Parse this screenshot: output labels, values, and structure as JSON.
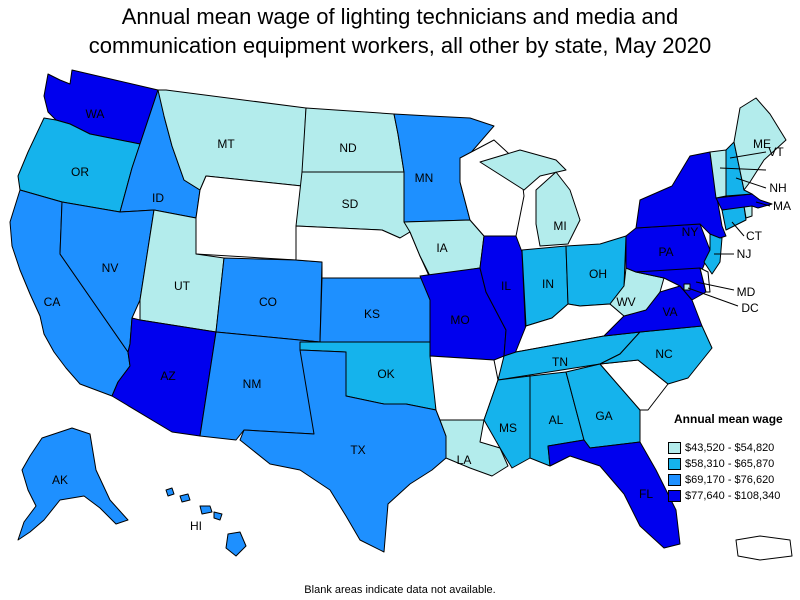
{
  "title": {
    "line1": "Annual mean wage of lighting technicians and media and",
    "line2": "communication equipment workers, all other by state, May 2020"
  },
  "colors": {
    "c1": "#b3ecec",
    "c2": "#15b3ec",
    "c3": "#1e90ff",
    "c4": "#0000ee",
    "na": "#ffffff"
  },
  "legend": {
    "title": "Annual mean wage",
    "items": [
      {
        "label": "$43,520 - $54,820",
        "color": "#b3ecec"
      },
      {
        "label": "$58,310 - $65,870",
        "color": "#15b3ec"
      },
      {
        "label": "$69,170 - $76,620",
        "color": "#1e90ff"
      },
      {
        "label": "$77,640 - $108,340",
        "color": "#0000ee"
      }
    ]
  },
  "states": {
    "WA": {
      "label": "WA",
      "class": "c4"
    },
    "OR": {
      "label": "OR",
      "class": "c2"
    },
    "CA": {
      "label": "CA",
      "class": "c3"
    },
    "ID": {
      "label": "ID",
      "class": "c3"
    },
    "NV": {
      "label": "NV",
      "class": "c3"
    },
    "MT": {
      "label": "MT",
      "class": "c1"
    },
    "WY": {
      "label": "",
      "class": "na"
    },
    "UT": {
      "label": "UT",
      "class": "c1"
    },
    "AZ": {
      "label": "AZ",
      "class": "c4"
    },
    "CO": {
      "label": "CO",
      "class": "c3"
    },
    "NM": {
      "label": "NM",
      "class": "c3"
    },
    "ND": {
      "label": "ND",
      "class": "c1"
    },
    "SD": {
      "label": "SD",
      "class": "c1"
    },
    "NE": {
      "label": "",
      "class": "na"
    },
    "KS": {
      "label": "KS",
      "class": "c3"
    },
    "OK": {
      "label": "OK",
      "class": "c2"
    },
    "TX": {
      "label": "TX",
      "class": "c3"
    },
    "MN": {
      "label": "MN",
      "class": "c3"
    },
    "IA": {
      "label": "IA",
      "class": "c1"
    },
    "MO": {
      "label": "MO",
      "class": "c4"
    },
    "AR": {
      "label": "",
      "class": "na"
    },
    "LA": {
      "label": "LA",
      "class": "c1"
    },
    "WI": {
      "label": "",
      "class": "na"
    },
    "IL": {
      "label": "IL",
      "class": "c4"
    },
    "MI": {
      "label": "MI",
      "class": "c1"
    },
    "IN": {
      "label": "IN",
      "class": "c2"
    },
    "OH": {
      "label": "OH",
      "class": "c2"
    },
    "KY": {
      "label": "",
      "class": "na"
    },
    "TN": {
      "label": "TN",
      "class": "c2"
    },
    "MS": {
      "label": "MS",
      "class": "c2"
    },
    "AL": {
      "label": "AL",
      "class": "c2"
    },
    "GA": {
      "label": "GA",
      "class": "c2"
    },
    "FL": {
      "label": "FL",
      "class": "c4"
    },
    "SC": {
      "label": "",
      "class": "na"
    },
    "NC": {
      "label": "NC",
      "class": "c2"
    },
    "VA": {
      "label": "VA",
      "class": "c4"
    },
    "WV": {
      "label": "WV",
      "class": "c1"
    },
    "PA": {
      "label": "PA",
      "class": "c4"
    },
    "NY": {
      "label": "NY",
      "class": "c4"
    },
    "NJ": {
      "label": "NJ",
      "class": "c2"
    },
    "DE": {
      "label": "",
      "class": "na"
    },
    "MD": {
      "label": "MD",
      "class": "c4"
    },
    "DC": {
      "label": "DC",
      "class": "c1"
    },
    "CT": {
      "label": "CT",
      "class": "c2"
    },
    "RI": {
      "label": "",
      "class": "c1"
    },
    "MA": {
      "label": "MA",
      "class": "c4"
    },
    "VT": {
      "label": "VT",
      "class": "c1"
    },
    "NH": {
      "label": "NH",
      "class": "c2"
    },
    "ME": {
      "label": "ME",
      "class": "c1"
    },
    "AK": {
      "label": "AK",
      "class": "c3"
    },
    "HI": {
      "label": "HI",
      "class": "c3"
    },
    "PR": {
      "label": "",
      "class": "na"
    }
  },
  "note": "Blank areas indicate data not available."
}
